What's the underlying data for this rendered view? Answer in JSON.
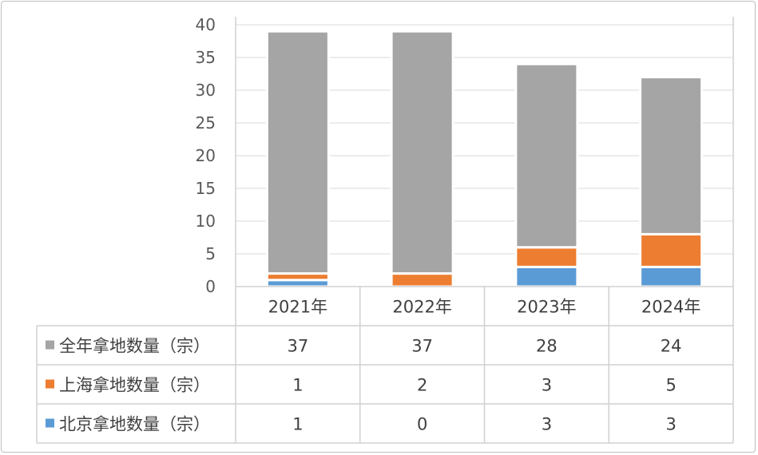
{
  "chart_data": {
    "type": "bar",
    "stacked": true,
    "title": "",
    "xlabel": "",
    "ylabel": "",
    "ylim": [
      0,
      40
    ],
    "yticks": [
      0,
      5,
      10,
      15,
      20,
      25,
      30,
      35,
      40
    ],
    "grid": true,
    "legend": "data-table-left",
    "categories": [
      "2021年",
      "2022年",
      "2023年",
      "2024年"
    ],
    "series": [
      {
        "name": "全年拿地数量（宗）",
        "color": "#a5a5a5",
        "values": [
          37,
          37,
          28,
          24
        ]
      },
      {
        "name": "上海拿地数量（宗）",
        "color": "#ed7d31",
        "values": [
          1,
          2,
          3,
          5
        ]
      },
      {
        "name": "北京拿地数量（宗）",
        "color": "#5b9bd5",
        "values": [
          1,
          0,
          3,
          3
        ]
      }
    ],
    "stack_order_bottom_to_top": [
      "北京拿地数量（宗）",
      "上海拿地数量（宗）",
      "全年拿地数量（宗）"
    ]
  }
}
